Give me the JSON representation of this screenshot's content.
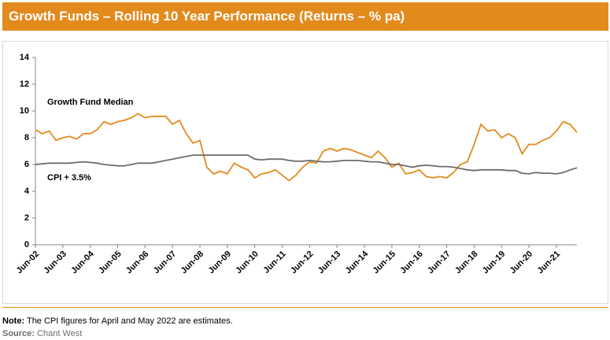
{
  "chart_data": {
    "type": "line",
    "title": "Growth Funds – Rolling 10 Year Performance (Returns – % pa)",
    "categories": [
      "Jun-02",
      null,
      null,
      null,
      "Jun-03",
      null,
      null,
      null,
      "Jun-04",
      null,
      null,
      null,
      "Jun-05",
      null,
      null,
      null,
      "Jun-06",
      null,
      null,
      null,
      "Jun-07",
      null,
      null,
      null,
      "Jun-08",
      null,
      null,
      null,
      "Jun-09",
      null,
      null,
      null,
      "Jun-10",
      null,
      null,
      null,
      "Jun-11",
      null,
      null,
      null,
      "Jun-12",
      null,
      null,
      null,
      "Jun-13",
      null,
      null,
      null,
      "Jun-14",
      null,
      null,
      null,
      "Jun-15",
      null,
      null,
      null,
      "Jun-16",
      null,
      null,
      null,
      "Jun-17",
      null,
      null,
      null,
      "Jun-18",
      null,
      null,
      null,
      "Jun-19",
      null,
      null,
      null,
      "Jun-20",
      null,
      null,
      null,
      "Jun-21",
      null,
      null,
      null
    ],
    "series": [
      {
        "name": "Growth Fund Median",
        "color": "#e38a1d",
        "values": [
          8.6,
          8.3,
          8.5,
          7.8,
          8.0,
          8.1,
          7.9,
          8.3,
          8.3,
          8.6,
          9.2,
          9.0,
          9.2,
          9.3,
          9.5,
          9.8,
          9.5,
          9.6,
          9.6,
          9.6,
          9.0,
          9.3,
          8.3,
          7.6,
          7.8,
          5.8,
          5.3,
          5.5,
          5.3,
          6.1,
          5.8,
          5.6,
          5.0,
          5.3,
          5.4,
          5.6,
          5.2,
          4.8,
          5.2,
          5.8,
          6.2,
          6.1,
          7.0,
          7.2,
          7.0,
          7.2,
          7.1,
          6.9,
          6.7,
          6.5,
          7.0,
          6.5,
          5.8,
          6.1,
          5.3,
          5.4,
          5.6,
          5.1,
          5.0,
          5.1,
          5.0,
          5.4,
          6.0,
          6.2,
          7.5,
          9.0,
          8.5,
          8.6,
          8.0,
          8.3,
          8.0,
          6.8,
          7.5,
          7.5,
          7.8,
          8.0,
          8.5,
          9.2,
          9.0,
          8.4
        ]
      },
      {
        "name": "CPI + 3.5%",
        "color": "#6d6d6d",
        "values": [
          6.0,
          6.05,
          6.1,
          6.1,
          6.1,
          6.1,
          6.15,
          6.2,
          6.15,
          6.1,
          6.0,
          5.95,
          5.9,
          5.9,
          6.0,
          6.1,
          6.1,
          6.1,
          6.2,
          6.3,
          6.4,
          6.5,
          6.6,
          6.7,
          6.7,
          6.7,
          6.7,
          6.7,
          6.7,
          6.7,
          6.7,
          6.7,
          6.4,
          6.35,
          6.4,
          6.4,
          6.4,
          6.3,
          6.25,
          6.25,
          6.3,
          6.25,
          6.2,
          6.2,
          6.25,
          6.3,
          6.3,
          6.3,
          6.25,
          6.2,
          6.2,
          6.1,
          6.0,
          6.0,
          5.9,
          5.8,
          5.9,
          5.95,
          5.9,
          5.85,
          5.85,
          5.8,
          5.7,
          5.6,
          5.55,
          5.6,
          5.6,
          5.6,
          5.6,
          5.55,
          5.55,
          5.35,
          5.3,
          5.4,
          5.35,
          5.35,
          5.3,
          5.4,
          5.6,
          5.75
        ]
      }
    ],
    "ylim": [
      0,
      14
    ],
    "yticks": [
      0,
      2,
      4,
      6,
      8,
      10,
      12,
      14
    ],
    "grid": false
  },
  "footer": {
    "note": {
      "label": "Note:",
      "text": "The CPI figures for April and May 2022 are estimates."
    },
    "source": {
      "label": "Source:",
      "text": "Chant West"
    }
  }
}
